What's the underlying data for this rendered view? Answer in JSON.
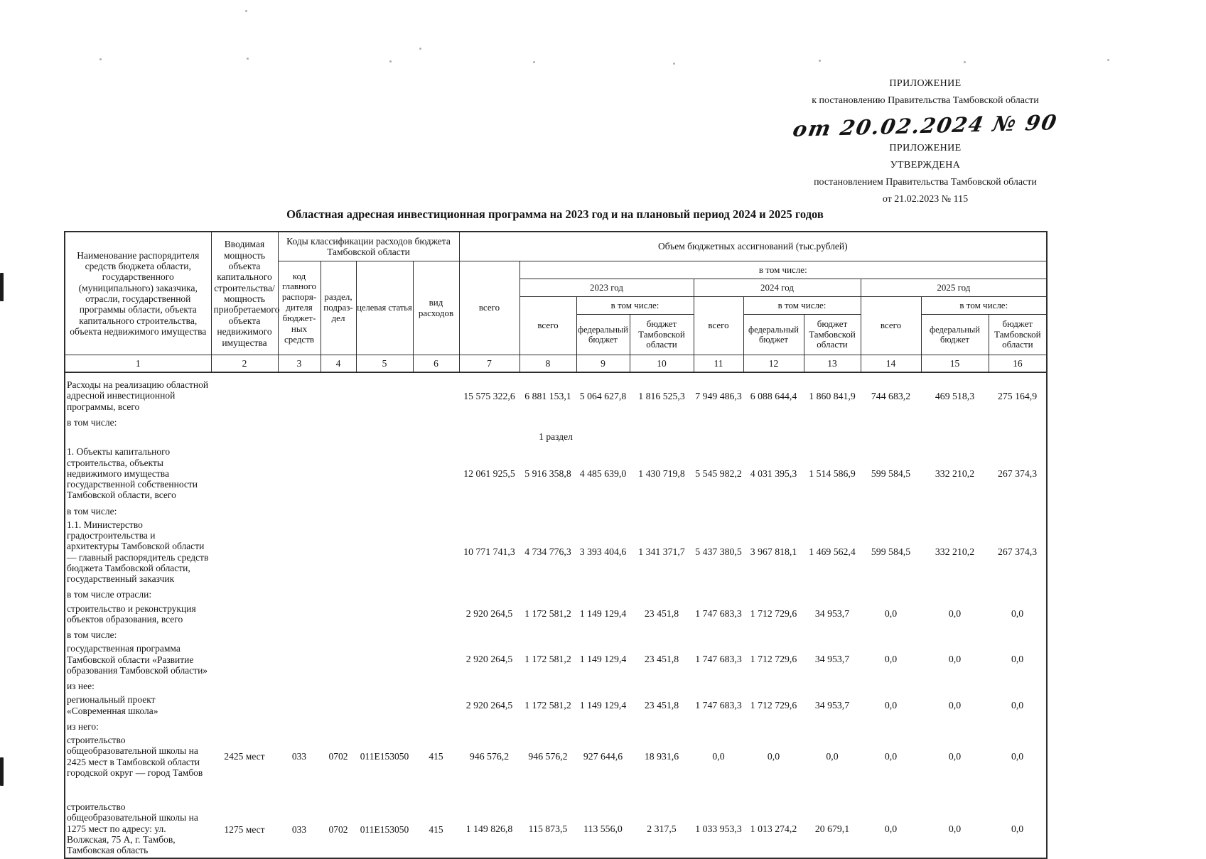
{
  "header_block": {
    "appendix_label_1": "ПРИЛОЖЕНИЕ",
    "reference_1": "к постановлению Правительства Тамбовской области",
    "handwritten_date": "от 20.02.2024 № 90",
    "appendix_label_2": "ПРИЛОЖЕНИЕ",
    "approved_label": "УТВЕРЖДЕНА",
    "reference_2": "постановлением Правительства Тамбовской области",
    "approval_date": "от 21.02.2023 № 115"
  },
  "title": "Областная адресная инвестиционная программа на 2023 год и на плановый период 2024 и 2025 годов",
  "table": {
    "header": {
      "col1": "Наименование распорядителя средств бюджета области, государственного (муниципального) заказчика, отрасли, государственной программы области, объекта капитального строительства, объекта недвижимого имущества",
      "col2": "Вводимая мощность объекта капитального строительства/ мощность приобретаемого объекта недвижимого имущества",
      "codes_group": "Коды классификации расходов бюджета Тамбовской области",
      "codes": [
        "код главного распоря-дителя бюджет-ных средств",
        "раздел, подраз-дел",
        "целевая статья",
        "вид расходов"
      ],
      "volume_group": "Объем бюджетных ассигнований (тыс.рублей)",
      "vsego": "всего",
      "including": "в том числе:",
      "years": [
        "2023 год",
        "2024 год",
        "2025 год"
      ],
      "year_sub": [
        "всего",
        "федеральный бюджет",
        "бюджет Тамбовской области"
      ],
      "numbers": [
        "1",
        "2",
        "3",
        "4",
        "5",
        "6",
        "7",
        "8",
        "9",
        "10",
        "11",
        "12",
        "13",
        "14",
        "15",
        "16"
      ]
    },
    "rows": [
      {
        "type": "data",
        "name": "Расходы на реализацию областной адресной инвестиционной программы, всего",
        "capacity": "",
        "codes": [
          "",
          "",
          "",
          ""
        ],
        "values": [
          "15 575 322,6",
          "6 881 153,1",
          "5 064 627,8",
          "1 816 525,3",
          "7 949 486,3",
          "6 088 644,4",
          "1 860 841,9",
          "744 683,2",
          "469 518,3",
          "275 164,9"
        ]
      },
      {
        "type": "label",
        "text": "в том числе:"
      },
      {
        "type": "section",
        "text": "1 раздел"
      },
      {
        "type": "data",
        "name": "1. Объекты капитального строительства, объекты недвижимого имущества государственной собственности Тамбовской области, всего",
        "capacity": "",
        "codes": [
          "",
          "",
          "",
          ""
        ],
        "values": [
          "12 061 925,5",
          "5 916 358,8",
          "4 485 639,0",
          "1 430 719,8",
          "5 545 982,2",
          "4 031 395,3",
          "1 514 586,9",
          "599 584,5",
          "332 210,2",
          "267 374,3"
        ]
      },
      {
        "type": "label",
        "text": "в том числе:"
      },
      {
        "type": "data",
        "name": "1.1. Министерство градостроительства и архитектуры Тамбовской области — главный распорядитель средств бюджета Тамбовской области, государственный заказчик",
        "capacity": "",
        "codes": [
          "",
          "",
          "",
          ""
        ],
        "values": [
          "10 771 741,3",
          "4 734 776,3",
          "3 393 404,6",
          "1 341 371,7",
          "5 437 380,5",
          "3 967 818,1",
          "1 469 562,4",
          "599 584,5",
          "332 210,2",
          "267 374,3"
        ]
      },
      {
        "type": "label",
        "text": "в том числе отрасли:"
      },
      {
        "type": "data",
        "name": "строительство и реконструкция объектов образования, всего",
        "capacity": "",
        "codes": [
          "",
          "",
          "",
          ""
        ],
        "values": [
          "2 920 264,5",
          "1 172 581,2",
          "1 149 129,4",
          "23 451,8",
          "1 747 683,3",
          "1 712 729,6",
          "34 953,7",
          "0,0",
          "0,0",
          "0,0"
        ]
      },
      {
        "type": "label",
        "text": "в том числе:"
      },
      {
        "type": "data",
        "name": "государственная программа Тамбовской области «Развитие образования Тамбовской области»",
        "capacity": "",
        "codes": [
          "",
          "",
          "",
          ""
        ],
        "values": [
          "2 920 264,5",
          "1 172 581,2",
          "1 149 129,4",
          "23 451,8",
          "1 747 683,3",
          "1 712 729,6",
          "34 953,7",
          "0,0",
          "0,0",
          "0,0"
        ]
      },
      {
        "type": "label",
        "text": "из нее:"
      },
      {
        "type": "data",
        "name": "региональный проект «Современная школа»",
        "capacity": "",
        "codes": [
          "",
          "",
          "",
          ""
        ],
        "values": [
          "2 920 264,5",
          "1 172 581,2",
          "1 149 129,4",
          "23 451,8",
          "1 747 683,3",
          "1 712 729,6",
          "34 953,7",
          "0,0",
          "0,0",
          "0,0"
        ]
      },
      {
        "type": "label",
        "text": "из него:"
      },
      {
        "type": "data",
        "name": "строительство общеобразовательной школы на 2425 мест в Тамбовской области городской округ — город Тамбов",
        "capacity": "2425 мест",
        "codes": [
          "033",
          "0702",
          "011E153050",
          "415"
        ],
        "values": [
          "946 576,2",
          "946 576,2",
          "927 644,6",
          "18 931,6",
          "0,0",
          "0,0",
          "0,0",
          "0,0",
          "0,0",
          "0,0"
        ]
      },
      {
        "type": "data",
        "gap_before": true,
        "name": "строительство общеобразовательной школы на 1275 мест по адресу: ул. Волжская, 75 А, г. Тамбов, Тамбовская область",
        "capacity": "1275 мест",
        "codes": [
          "033",
          "0702",
          "011E153050",
          "415"
        ],
        "values": [
          "1 149 826,8",
          "115 873,5",
          "113 556,0",
          "2 317,5",
          "1 033 953,3",
          "1 013 274,2",
          "20 679,1",
          "0,0",
          "0,0",
          "0,0"
        ]
      }
    ]
  }
}
